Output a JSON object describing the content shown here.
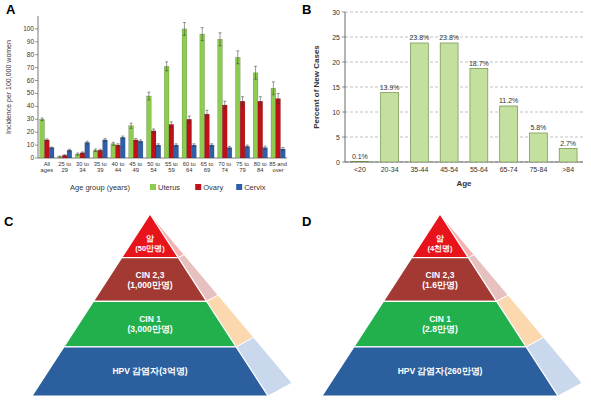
{
  "chart_data": [
    {
      "type": "bar",
      "title": "A",
      "xlabel": "Age group (years)",
      "ylabel": "Incidence per 100,000 women",
      "categories": [
        "All ages",
        "25 to 29",
        "30 to 34",
        "35 to 39",
        "40 to 44",
        "45 to 49",
        "50 to 54",
        "55 to 59",
        "60 to 64",
        "65 to 69",
        "70 to 74",
        "75 to 79",
        "80 to 84",
        "85 and over"
      ],
      "series": [
        {
          "name": "Uterus",
          "color": "#8dcc4e",
          "values": [
            30,
            1,
            3,
            6,
            11,
            25,
            48,
            71,
            100,
            96,
            92,
            78,
            66,
            54
          ],
          "errors": [
            1,
            0.5,
            0.8,
            1,
            1.2,
            2,
            3,
            3.5,
            5,
            5,
            5,
            5,
            5,
            5
          ]
        },
        {
          "name": "Ovary",
          "color": "#c0111b",
          "values": [
            14,
            2,
            4,
            6,
            10,
            14,
            21,
            26,
            30,
            34,
            41,
            44,
            44,
            46
          ],
          "errors": [
            0.8,
            0.5,
            0.7,
            0.8,
            1,
            1.2,
            1.5,
            2,
            2.5,
            3,
            3,
            3.5,
            3.5,
            4
          ]
        },
        {
          "name": "Cervix",
          "color": "#2f5fa9",
          "values": [
            8,
            6,
            12,
            14,
            16,
            13,
            10,
            10,
            10,
            10,
            8,
            9,
            8,
            7
          ],
          "errors": [
            0.5,
            0.8,
            1,
            1,
            1,
            1,
            1,
            1,
            1,
            1,
            1,
            1,
            1.2,
            1.2
          ]
        }
      ],
      "ylim": [
        0,
        110
      ],
      "yticks": [
        0,
        10,
        20,
        30,
        40,
        50,
        60,
        70,
        80,
        90,
        100
      ],
      "grid": false,
      "legend": "bottom"
    },
    {
      "type": "bar",
      "title": "B",
      "xlabel": "Age",
      "ylabel": "Percent of New Cases",
      "categories": [
        "<20",
        "20-34",
        "35-44",
        "45-54",
        "55-64",
        "65-74",
        "75-84",
        ">84"
      ],
      "values": [
        0.1,
        13.9,
        23.8,
        23.8,
        18.7,
        11.2,
        5.8,
        2.7
      ],
      "value_labels": [
        "0.1%",
        "13.9%",
        "23.8%",
        "23.8%",
        "18.7%",
        "11.2%",
        "5.8%",
        "2.7%"
      ],
      "color": "#c4e09e",
      "ylim": [
        0,
        30
      ],
      "yticks": [
        0,
        5,
        10,
        15,
        20,
        25,
        30
      ],
      "grid": true,
      "data_labels": true
    }
  ],
  "diagrams": [
    {
      "type": "pyramid",
      "title": "C",
      "levels": [
        {
          "lines": [
            "암",
            "(50만명)"
          ]
        },
        {
          "lines": [
            "CIN 2,3",
            "(1,000만명)"
          ]
        },
        {
          "lines": [
            "CIN 1",
            "(3,000만명)"
          ]
        },
        {
          "lines": [
            "HPV 감염자(3억명)"
          ]
        }
      ]
    },
    {
      "type": "pyramid",
      "title": "D",
      "levels": [
        {
          "lines": [
            "암",
            "(4천명)"
          ]
        },
        {
          "lines": [
            "CIN 2,3",
            "(1.6만명)"
          ]
        },
        {
          "lines": [
            "CIN 1",
            "(2.8만명)"
          ]
        },
        {
          "lines": [
            "HPV 감염자(260만명)"
          ]
        }
      ]
    }
  ]
}
